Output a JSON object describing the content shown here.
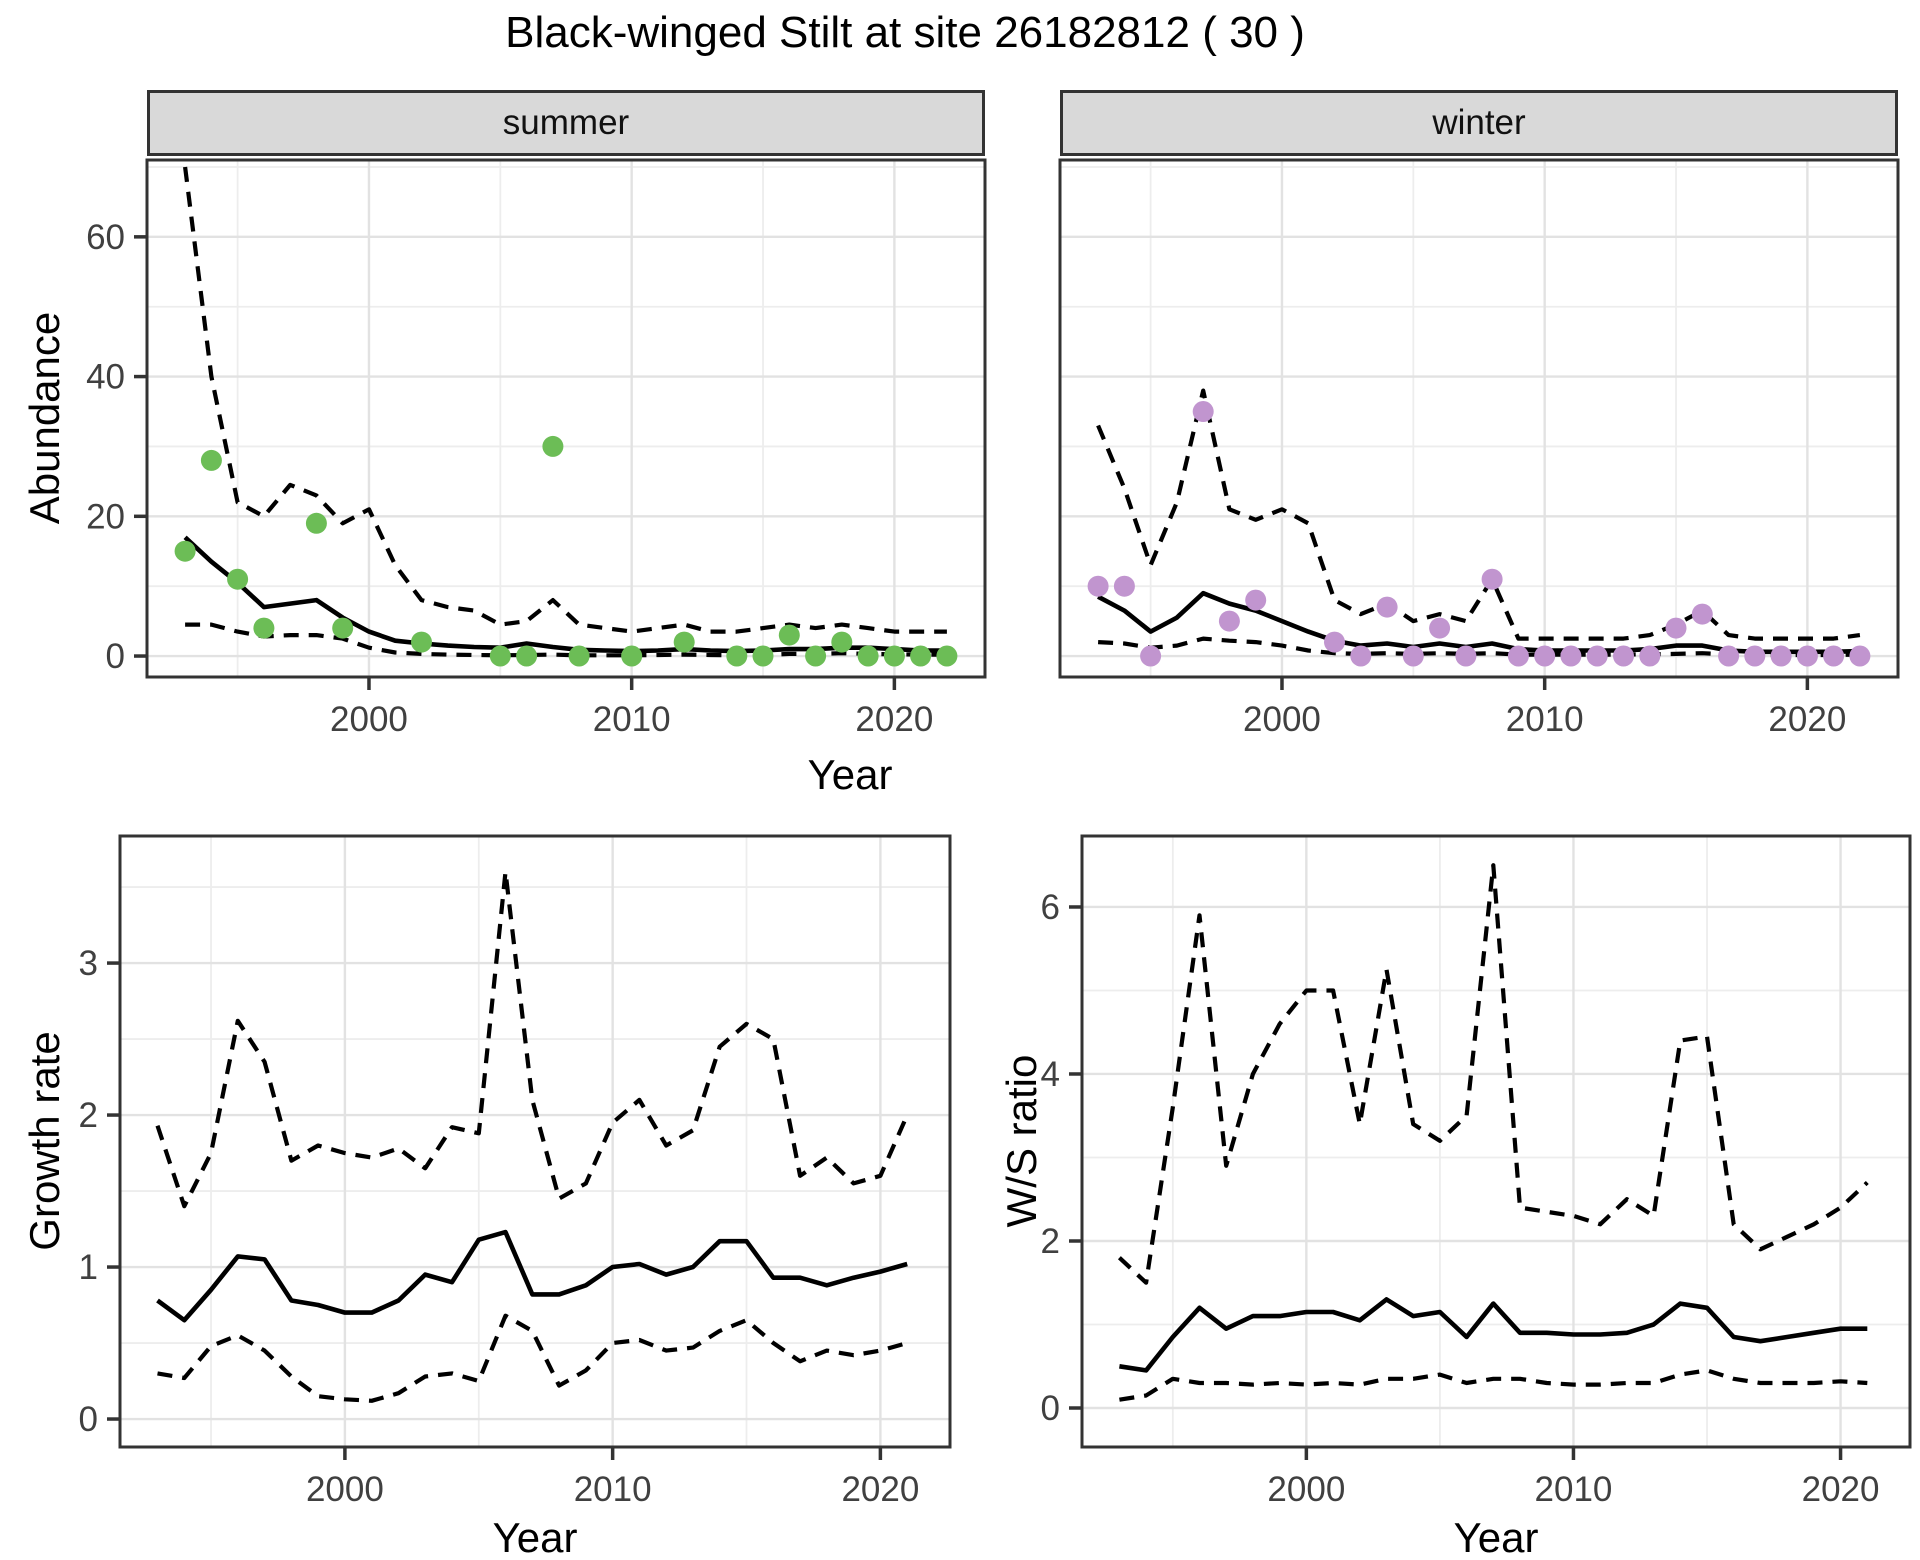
{
  "title": "Black-winged Stilt at site 26182812 ( 30 )",
  "style": {
    "line_color": "#000000",
    "grid_major": "#E2E2E2",
    "grid_minor": "#EDEDED",
    "panel_border": "#333333",
    "strip_bg": "#D9D9D9",
    "tick_color": "#333333",
    "summer_point_color": "#6CBD56",
    "winter_point_color": "#C195CF"
  },
  "chart_data": [
    {
      "type": "scatter+line",
      "panel_id": "abundance-summer",
      "strip_label": "summer",
      "xlabel": "Year",
      "ylabel": "Abundance",
      "xlim": [
        1991.55,
        2023.45
      ],
      "ylim": [
        -3,
        71
      ],
      "xticks": [
        2000,
        2010,
        2020
      ],
      "yticks": [
        0,
        20,
        40,
        60
      ],
      "xminor": [
        1995,
        2005,
        2015
      ],
      "yminor": [
        10,
        30,
        50,
        70
      ],
      "point_color": "#6CBD56",
      "points": {
        "x": [
          1993,
          1994,
          1995,
          1996,
          1998,
          1999,
          2002,
          2005,
          2006,
          2007,
          2008,
          2010,
          2012,
          2014,
          2015,
          2016,
          2017,
          2018,
          2019,
          2020,
          2021,
          2022
        ],
        "y": [
          15,
          28,
          11,
          4,
          19,
          4,
          2,
          0,
          0,
          30,
          0,
          0,
          2,
          0,
          0,
          3,
          0,
          2,
          0,
          0,
          0,
          0
        ]
      },
      "series": [
        {
          "name": "model-fit",
          "style": "solid",
          "x": [
            1993,
            1994,
            1995,
            1996,
            1997,
            1998,
            1999,
            2000,
            2001,
            2002,
            2003,
            2004,
            2005,
            2006,
            2007,
            2008,
            2009,
            2010,
            2011,
            2012,
            2013,
            2014,
            2015,
            2016,
            2017,
            2018,
            2019,
            2020,
            2021,
            2022
          ],
          "y": [
            17,
            13.5,
            10.5,
            7,
            7.5,
            8,
            5.5,
            3.5,
            2.2,
            1.8,
            1.5,
            1.3,
            1.2,
            1.8,
            1.3,
            0.9,
            0.8,
            0.7,
            0.8,
            1.0,
            0.8,
            0.7,
            0.8,
            1.0,
            1.0,
            1.2,
            1.2,
            1.0,
            0.8,
            0.8
          ]
        },
        {
          "name": "upper-ci",
          "style": "dashed",
          "x": [
            1993,
            1994,
            1995,
            1996,
            1997,
            1998,
            1999,
            2000,
            2001,
            2002,
            2003,
            2004,
            2005,
            2006,
            2007,
            2008,
            2009,
            2010,
            2011,
            2012,
            2013,
            2014,
            2015,
            2016,
            2017,
            2018,
            2019,
            2020,
            2021,
            2022
          ],
          "y": [
            70,
            40,
            22,
            20,
            24.5,
            23,
            19,
            21,
            13,
            8,
            7,
            6.5,
            4.5,
            5,
            8,
            4.5,
            4,
            3.5,
            4,
            4.5,
            3.5,
            3.5,
            4,
            4.5,
            4,
            4.5,
            4,
            3.5,
            3.5,
            3.5
          ]
        },
        {
          "name": "lower-ci",
          "style": "dashed",
          "x": [
            1993,
            1994,
            1995,
            1996,
            1997,
            1998,
            1999,
            2000,
            2001,
            2002,
            2003,
            2004,
            2005,
            2006,
            2007,
            2008,
            2009,
            2010,
            2011,
            2012,
            2013,
            2014,
            2015,
            2016,
            2017,
            2018,
            2019,
            2020,
            2021,
            2022
          ],
          "y": [
            4.5,
            4.5,
            3.5,
            2.8,
            3,
            3,
            2.5,
            1.2,
            0.5,
            0.3,
            0.2,
            0.15,
            0.1,
            0.15,
            0.2,
            0.1,
            0.1,
            0.1,
            0.15,
            0.2,
            0.15,
            0.1,
            0.15,
            0.3,
            0.3,
            0.4,
            0.3,
            0.25,
            0.2,
            0.2
          ]
        }
      ]
    },
    {
      "type": "scatter+line",
      "panel_id": "abundance-winter",
      "strip_label": "winter",
      "xlabel": "Year",
      "ylabel": "",
      "xlim": [
        1991.55,
        2023.45
      ],
      "ylim": [
        -3,
        71
      ],
      "xticks": [
        2000,
        2010,
        2020
      ],
      "yticks": [
        0,
        20,
        40,
        60
      ],
      "xminor": [
        1995,
        2005,
        2015
      ],
      "yminor": [
        10,
        30,
        50,
        70
      ],
      "point_color": "#C195CF",
      "points": {
        "x": [
          1993,
          1994,
          1995,
          1997,
          1998,
          1999,
          2002,
          2003,
          2004,
          2005,
          2006,
          2007,
          2008,
          2009,
          2010,
          2011,
          2012,
          2013,
          2014,
          2015,
          2016,
          2017,
          2018,
          2019,
          2020,
          2021,
          2022
        ],
        "y": [
          10,
          10,
          0,
          35,
          5,
          8,
          2,
          0,
          7,
          0,
          4,
          0,
          11,
          0,
          0,
          0,
          0,
          0,
          0,
          4,
          6,
          0,
          0,
          0,
          0,
          0,
          0
        ]
      },
      "series": [
        {
          "name": "model-fit",
          "style": "solid",
          "x": [
            1993,
            1994,
            1995,
            1996,
            1997,
            1998,
            1999,
            2000,
            2001,
            2002,
            2003,
            2004,
            2005,
            2006,
            2007,
            2008,
            2009,
            2010,
            2011,
            2012,
            2013,
            2014,
            2015,
            2016,
            2017,
            2018,
            2019,
            2020,
            2021,
            2022
          ],
          "y": [
            8.5,
            6.5,
            3.5,
            5.5,
            9,
            7.5,
            6.5,
            5,
            3.5,
            2.2,
            1.5,
            1.8,
            1.3,
            1.8,
            1.3,
            1.8,
            1,
            0.8,
            0.8,
            0.8,
            0.8,
            1,
            1.5,
            1.5,
            0.8,
            0.6,
            0.6,
            0.6,
            0.6,
            0.7
          ]
        },
        {
          "name": "upper-ci",
          "style": "dashed",
          "x": [
            1993,
            1994,
            1995,
            1996,
            1997,
            1998,
            1999,
            2000,
            2001,
            2002,
            2003,
            2004,
            2005,
            2006,
            2007,
            2008,
            2009,
            2010,
            2011,
            2012,
            2013,
            2014,
            2015,
            2016,
            2017,
            2018,
            2019,
            2020,
            2021,
            2022
          ],
          "y": [
            33,
            24,
            13,
            22,
            38,
            21,
            19.5,
            21,
            19,
            8,
            6,
            7.5,
            5,
            6,
            5,
            11,
            2.5,
            2.5,
            2.5,
            2.5,
            2.5,
            3,
            4.5,
            6.5,
            3,
            2.5,
            2.5,
            2.5,
            2.5,
            3
          ]
        },
        {
          "name": "lower-ci",
          "style": "dashed",
          "x": [
            1993,
            1994,
            1995,
            1996,
            1997,
            1998,
            1999,
            2000,
            2001,
            2002,
            2003,
            2004,
            2005,
            2006,
            2007,
            2008,
            2009,
            2010,
            2011,
            2012,
            2013,
            2014,
            2015,
            2016,
            2017,
            2018,
            2019,
            2020,
            2021,
            2022
          ],
          "y": [
            2,
            1.8,
            1.2,
            1.5,
            2.5,
            2.2,
            2,
            1.5,
            0.8,
            0.4,
            0.3,
            0.4,
            0.3,
            0.4,
            0.3,
            0.4,
            0.2,
            0.2,
            0.2,
            0.2,
            0.2,
            0.25,
            0.3,
            0.4,
            0.2,
            0.15,
            0.15,
            0.15,
            0.15,
            0.2
          ]
        }
      ]
    },
    {
      "type": "line",
      "panel_id": "growth-rate",
      "strip_label": "",
      "xlabel": "Year",
      "ylabel": "Growth rate",
      "xlim": [
        1991.6,
        2022.6
      ],
      "ylim": [
        -0.184,
        3.836
      ],
      "xticks": [
        2000,
        2010,
        2020
      ],
      "yticks": [
        0,
        1,
        2,
        3
      ],
      "xminor": [
        1995,
        2005,
        2015
      ],
      "yminor": [
        0.5,
        1.5,
        2.5,
        3.5
      ],
      "series": [
        {
          "name": "model-fit",
          "style": "solid",
          "x": [
            1993,
            1994,
            1995,
            1996,
            1997,
            1998,
            1999,
            2000,
            2001,
            2002,
            2003,
            2004,
            2005,
            2006,
            2007,
            2008,
            2009,
            2010,
            2011,
            2012,
            2013,
            2014,
            2015,
            2016,
            2017,
            2018,
            2019,
            2020,
            2021
          ],
          "y": [
            0.78,
            0.65,
            0.85,
            1.07,
            1.05,
            0.78,
            0.75,
            0.7,
            0.7,
            0.78,
            0.95,
            0.9,
            1.18,
            1.23,
            0.82,
            0.82,
            0.88,
            1.0,
            1.02,
            0.95,
            1.0,
            1.17,
            1.17,
            0.93,
            0.93,
            0.88,
            0.93,
            0.97,
            1.02
          ]
        },
        {
          "name": "upper-ci",
          "style": "dashed",
          "x": [
            1993,
            1994,
            1995,
            1996,
            1997,
            1998,
            1999,
            2000,
            2001,
            2002,
            2003,
            2004,
            2005,
            2006,
            2007,
            2008,
            2009,
            2010,
            2011,
            2012,
            2013,
            2014,
            2015,
            2016,
            2017,
            2018,
            2019,
            2020,
            2021
          ],
          "y": [
            1.93,
            1.4,
            1.75,
            2.62,
            2.35,
            1.7,
            1.8,
            1.75,
            1.72,
            1.78,
            1.65,
            1.92,
            1.88,
            3.6,
            2.1,
            1.45,
            1.55,
            1.95,
            2.1,
            1.8,
            1.9,
            2.45,
            2.6,
            2.5,
            1.6,
            1.72,
            1.55,
            1.6,
            2.0
          ]
        },
        {
          "name": "lower-ci",
          "style": "dashed",
          "x": [
            1993,
            1994,
            1995,
            1996,
            1997,
            1998,
            1999,
            2000,
            2001,
            2002,
            2003,
            2004,
            2005,
            2006,
            2007,
            2008,
            2009,
            2010,
            2011,
            2012,
            2013,
            2014,
            2015,
            2016,
            2017,
            2018,
            2019,
            2020,
            2021
          ],
          "y": [
            0.3,
            0.27,
            0.48,
            0.55,
            0.45,
            0.28,
            0.15,
            0.13,
            0.12,
            0.17,
            0.28,
            0.3,
            0.25,
            0.68,
            0.58,
            0.22,
            0.32,
            0.5,
            0.52,
            0.45,
            0.47,
            0.58,
            0.65,
            0.5,
            0.38,
            0.45,
            0.42,
            0.45,
            0.5
          ]
        }
      ]
    },
    {
      "type": "line",
      "panel_id": "ws-ratio",
      "strip_label": "",
      "xlabel": "Year",
      "ylabel": "W/S ratio",
      "xlim": [
        1991.6,
        2022.6
      ],
      "ylim": [
        -0.467,
        6.85
      ],
      "xticks": [
        2000,
        2010,
        2020
      ],
      "yticks": [
        0,
        2,
        4,
        6
      ],
      "xminor": [
        1995,
        2005,
        2015
      ],
      "yminor": [
        1,
        3,
        5
      ],
      "series": [
        {
          "name": "model-fit",
          "style": "solid",
          "x": [
            1993,
            1994,
            1995,
            1996,
            1997,
            1998,
            1999,
            2000,
            2001,
            2002,
            2003,
            2004,
            2005,
            2006,
            2007,
            2008,
            2009,
            2010,
            2011,
            2012,
            2013,
            2014,
            2015,
            2016,
            2017,
            2018,
            2019,
            2020,
            2021
          ],
          "y": [
            0.5,
            0.45,
            0.85,
            1.2,
            0.95,
            1.1,
            1.1,
            1.15,
            1.15,
            1.05,
            1.3,
            1.1,
            1.15,
            0.85,
            1.25,
            0.9,
            0.9,
            0.88,
            0.88,
            0.9,
            1.0,
            1.25,
            1.2,
            0.85,
            0.8,
            0.85,
            0.9,
            0.95,
            0.95
          ]
        },
        {
          "name": "upper-ci",
          "style": "dashed",
          "x": [
            1993,
            1994,
            1995,
            1996,
            1997,
            1998,
            1999,
            2000,
            2001,
            2002,
            2003,
            2004,
            2005,
            2006,
            2007,
            2008,
            2009,
            2010,
            2011,
            2012,
            2013,
            2014,
            2015,
            2016,
            2017,
            2018,
            2019,
            2020,
            2021
          ],
          "y": [
            1.8,
            1.5,
            3.6,
            5.9,
            2.9,
            4.0,
            4.6,
            5.0,
            5.0,
            3.4,
            5.25,
            3.4,
            3.2,
            3.5,
            6.5,
            2.4,
            2.35,
            2.3,
            2.2,
            2.5,
            2.3,
            4.4,
            4.45,
            2.2,
            1.9,
            2.05,
            2.2,
            2.4,
            2.7
          ]
        },
        {
          "name": "lower-ci",
          "style": "dashed",
          "x": [
            1993,
            1994,
            1995,
            1996,
            1997,
            1998,
            1999,
            2000,
            2001,
            2002,
            2003,
            2004,
            2005,
            2006,
            2007,
            2008,
            2009,
            2010,
            2011,
            2012,
            2013,
            2014,
            2015,
            2016,
            2017,
            2018,
            2019,
            2020,
            2021
          ],
          "y": [
            0.1,
            0.15,
            0.35,
            0.3,
            0.3,
            0.28,
            0.3,
            0.28,
            0.3,
            0.28,
            0.35,
            0.35,
            0.4,
            0.3,
            0.35,
            0.35,
            0.3,
            0.28,
            0.28,
            0.3,
            0.3,
            0.4,
            0.45,
            0.35,
            0.3,
            0.3,
            0.3,
            0.32,
            0.3
          ]
        }
      ]
    }
  ]
}
